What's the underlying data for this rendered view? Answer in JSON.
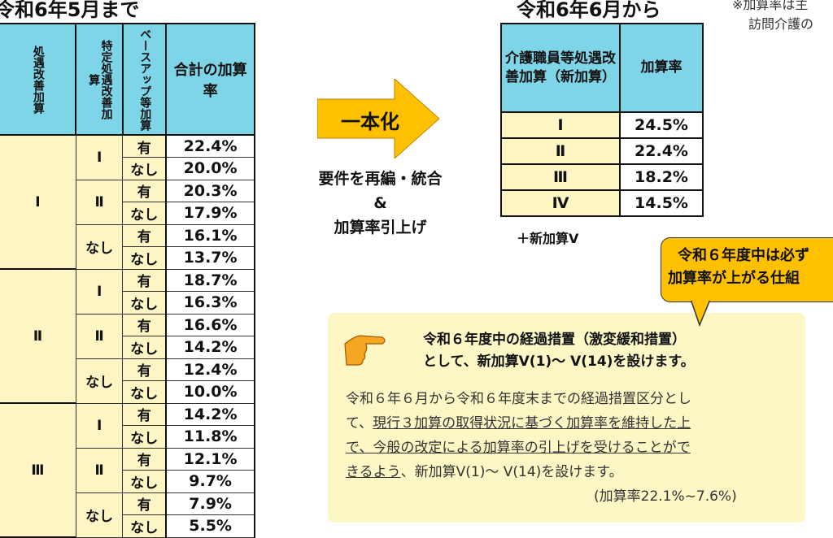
{
  "left": {
    "title": "令和6年5月まで",
    "headers": [
      "処遇改善加算",
      "特定処遇改善加算",
      "ベースアップ等加算",
      "合計の加算率"
    ],
    "groups": [
      {
        "level": "Ⅰ",
        "subs": [
          {
            "level": "Ⅰ",
            "rows": [
              [
                "有",
                "22.4%"
              ],
              [
                "なし",
                "20.0%"
              ]
            ]
          },
          {
            "level": "Ⅱ",
            "rows": [
              [
                "有",
                "20.3%"
              ],
              [
                "なし",
                "17.9%"
              ]
            ]
          },
          {
            "level": "なし",
            "rows": [
              [
                "有",
                "16.1%"
              ],
              [
                "なし",
                "13.7%"
              ]
            ]
          }
        ]
      },
      {
        "level": "Ⅱ",
        "subs": [
          {
            "level": "Ⅰ",
            "rows": [
              [
                "有",
                "18.7%"
              ],
              [
                "なし",
                "16.3%"
              ]
            ]
          },
          {
            "level": "Ⅱ",
            "rows": [
              [
                "有",
                "16.6%"
              ],
              [
                "なし",
                "14.2%"
              ]
            ]
          },
          {
            "level": "なし",
            "rows": [
              [
                "有",
                "12.4%"
              ],
              [
                "なし",
                "10.0%"
              ]
            ]
          }
        ]
      },
      {
        "level": "Ⅲ",
        "subs": [
          {
            "level": "Ⅰ",
            "rows": [
              [
                "有",
                "14.2%"
              ],
              [
                "なし",
                "11.8%"
              ]
            ]
          },
          {
            "level": "Ⅱ",
            "rows": [
              [
                "有",
                "12.1%"
              ],
              [
                "なし",
                "9.7%"
              ]
            ]
          },
          {
            "level": "なし",
            "rows": [
              [
                "有",
                "7.9%"
              ],
              [
                "なし",
                "5.5%"
              ]
            ]
          }
        ]
      }
    ]
  },
  "arrow": {
    "label": "一本化",
    "lines": [
      "要件を再編・統合",
      "&",
      "加算率引上げ"
    ],
    "color": "#ffc000"
  },
  "right": {
    "title": "令和6年6月から",
    "headers": [
      "介護職員等処遇改善加算（新加算）",
      "加算率"
    ],
    "rows": [
      [
        "Ⅰ",
        "24.5%"
      ],
      [
        "Ⅱ",
        "22.4%"
      ],
      [
        "Ⅲ",
        "18.2%"
      ],
      [
        "Ⅳ",
        "14.5%"
      ]
    ],
    "extra": "＋新加算Ⅴ"
  },
  "note": [
    "※加算率は主",
    "訪問介護の"
  ],
  "callout": [
    "令和６年度中は必ず",
    "加算率が上がる仕組"
  ],
  "box": {
    "heading": [
      "令和６年度中の経過措置（激変緩和措置）",
      "として、新加算Ⅴ(1)～ Ⅴ(14)を設けます。"
    ],
    "p1": "令和６年６月から令和６年度末までの経過措置区分とし",
    "p2a": "て、",
    "p2b": "現行３加算の取得状況に基づく加算率を維持した上",
    "p3a": "で、今般の改定による加算率の引上げを受けることがで",
    "p4a": "きるよう",
    "p4b": "、新加算Ⅴ(1)～ Ⅴ(14)を設けます。",
    "range": "(加算率22.1%~7.6%)"
  },
  "colors": {
    "header": "#7fd5e8",
    "cell": "#fdf6c4",
    "box": "#fdf7c6",
    "callout": "#ffc000"
  }
}
